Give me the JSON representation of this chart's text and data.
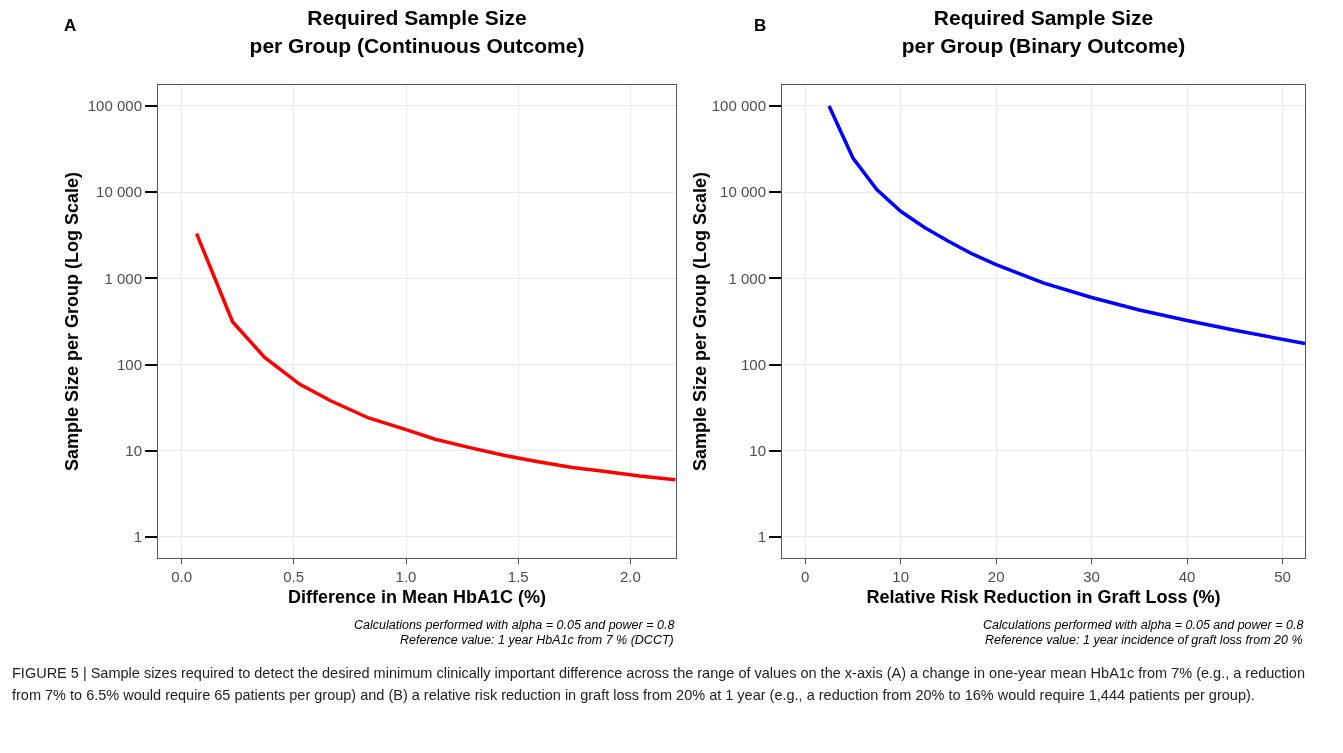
{
  "chart_data": [
    {
      "type": "line",
      "title": "Required Sample Size\nper Group (Continuous Outcome)",
      "xlabel": "Difference in Mean HbA1C (%)",
      "ylabel": "Sample Size per Group (Log Scale)",
      "x": [
        0.067,
        0.227,
        0.37,
        0.527,
        0.664,
        0.833,
        1.0,
        1.13,
        1.27,
        1.44,
        1.57,
        1.74,
        1.88,
        2.04,
        2.2
      ],
      "series": [
        {
          "color": "#ff0000",
          "values": [
            3300,
            314,
            121,
            59,
            38,
            24,
            17.6,
            13.6,
            11.1,
            8.8,
            7.6,
            6.4,
            5.8,
            5.1,
            4.6
          ]
        }
      ],
      "xlim": [
        -0.105,
        2.203
      ],
      "xticks": [
        {
          "value": 0,
          "label": "0.0"
        },
        0.5,
        {
          "value": 1,
          "label": "1.0"
        },
        1.5,
        {
          "value": 2,
          "label": "2.0"
        }
      ],
      "ylim": [
        0.57,
        175000
      ],
      "yticks": [
        1,
        10,
        100,
        {
          "value": 1000,
          "label": "1 000"
        },
        {
          "value": 10000,
          "label": "10 000"
        },
        {
          "value": 100000,
          "label": "100 000"
        }
      ],
      "log": "y",
      "grid": true,
      "marker": "none",
      "line_style": "solid",
      "annotations": [
        "A",
        "Calculations performed with alpha = 0.05 and power = 0.8",
        "Reference value: 1 year HbA1c from 7 % (DCCT)",
        "FIGURE 5 | Sample sizes required to detect the desired minimum clinically important difference across the range of values on the x-axis (A) a change in one-year mean HbA1c from 7% (e.g., a reduction from 7% to 6.5% would require 65 patients per group) and (B) a relative risk reduction in graft loss from 20% at 1 year (e.g., a reduction from 20% to 16% would require 1,444 patients per group)."
      ]
    },
    {
      "type": "line",
      "title": "Required Sample Size\nper Group (Binary Outcome)",
      "xlabel": "Relative Risk Reduction in Graft Loss (%)",
      "ylabel": "Sample Size per Group (Log Scale)",
      "x": [
        2.5,
        5,
        7.5,
        10,
        12.5,
        15,
        17.5,
        20,
        25,
        30,
        35,
        40,
        45,
        52.35
      ],
      "series": [
        {
          "color": "#0000ff",
          "values": [
            100000,
            24900,
            10700,
            6000,
            3900,
            2700,
            1920,
            1440,
            880,
            600,
            430,
            325,
            250,
            175
          ]
        }
      ],
      "xlim": [
        -2.43,
        52.35
      ],
      "xticks": [
        0,
        10,
        20,
        30,
        40,
        50
      ],
      "ylim": [
        0.57,
        175000
      ],
      "yticks": [
        1,
        10,
        100,
        {
          "value": 1000,
          "label": "1 000"
        },
        {
          "value": 10000,
          "label": "10 000"
        },
        {
          "value": 100000,
          "label": "100 000"
        }
      ],
      "log": "y",
      "grid": true,
      "marker": "none",
      "line_style": "solid",
      "annotations": [
        "B",
        "Calculations performed with alpha = 0.05 and power = 0.8",
        "Reference value: 1 year incidence of graft loss from 20 %"
      ]
    }
  ]
}
